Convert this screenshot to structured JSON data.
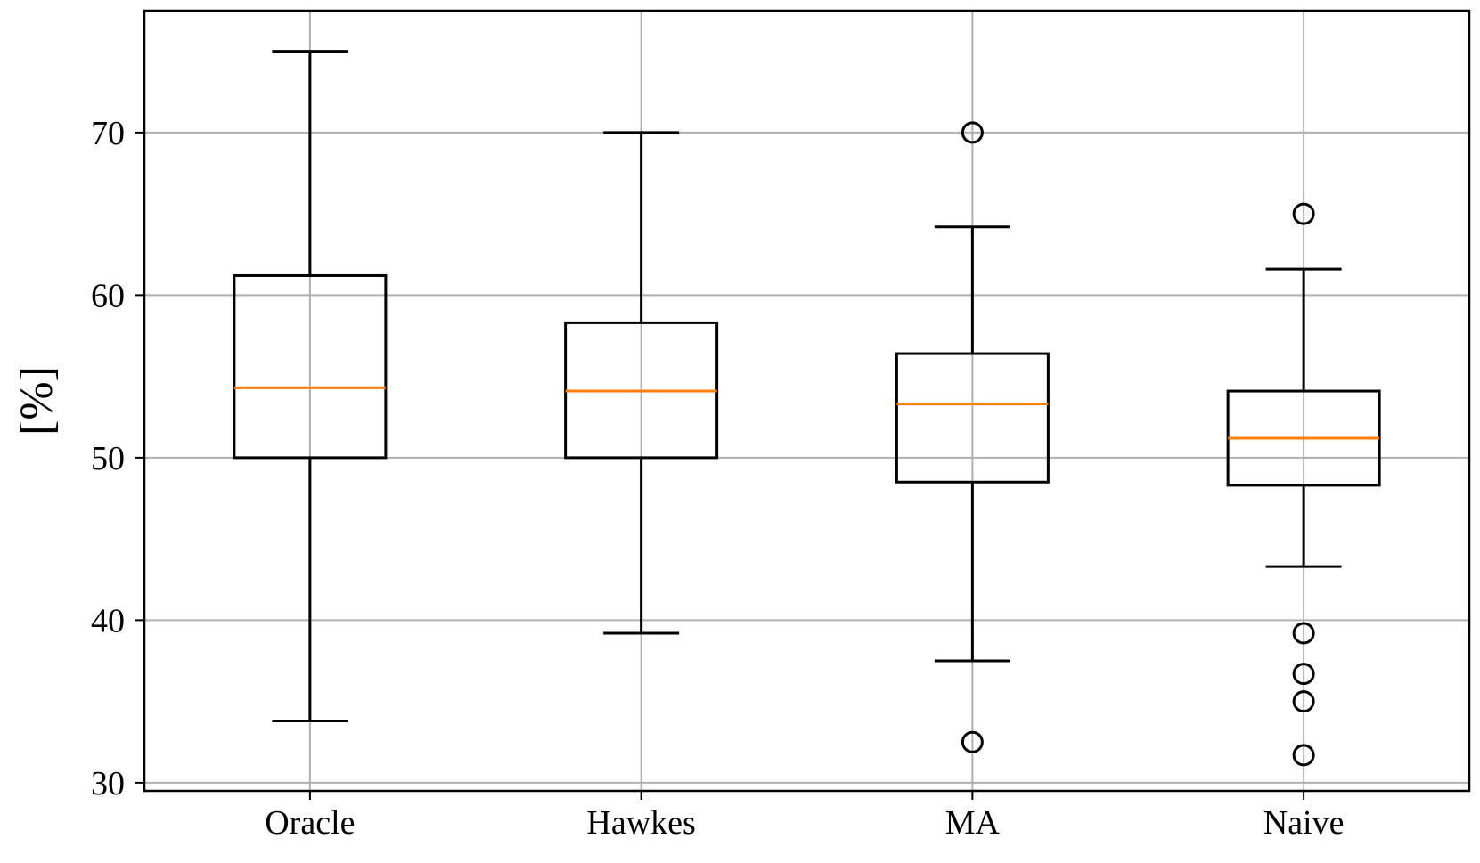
{
  "chart_data": {
    "type": "boxplot",
    "title": "",
    "xlabel": "",
    "ylabel": "[%]",
    "ylim": [
      29.5,
      77.5
    ],
    "yticks": [
      30,
      40,
      50,
      60,
      70
    ],
    "grid": true,
    "categories": [
      "Oracle",
      "Hawkes",
      "MA",
      "Naive"
    ],
    "boxes": [
      {
        "category": "Oracle",
        "whisker_low": 33.8,
        "q1": 50.0,
        "median": 54.3,
        "q3": 61.2,
        "whisker_high": 75.0,
        "outliers": []
      },
      {
        "category": "Hawkes",
        "whisker_low": 39.2,
        "q1": 50.0,
        "median": 54.1,
        "q3": 58.3,
        "whisker_high": 70.0,
        "outliers": []
      },
      {
        "category": "MA",
        "whisker_low": 37.5,
        "q1": 48.5,
        "median": 53.3,
        "q3": 56.4,
        "whisker_high": 64.2,
        "outliers": [
          70.0,
          32.5
        ]
      },
      {
        "category": "Naive",
        "whisker_low": 43.3,
        "q1": 48.3,
        "median": 51.2,
        "q3": 54.1,
        "whisker_high": 61.6,
        "outliers": [
          65.0,
          39.2,
          36.7,
          35.0,
          31.7
        ]
      }
    ],
    "colors": {
      "box": "#000000",
      "median": "#ff7f0e",
      "grid": "#b0b0b0"
    }
  }
}
